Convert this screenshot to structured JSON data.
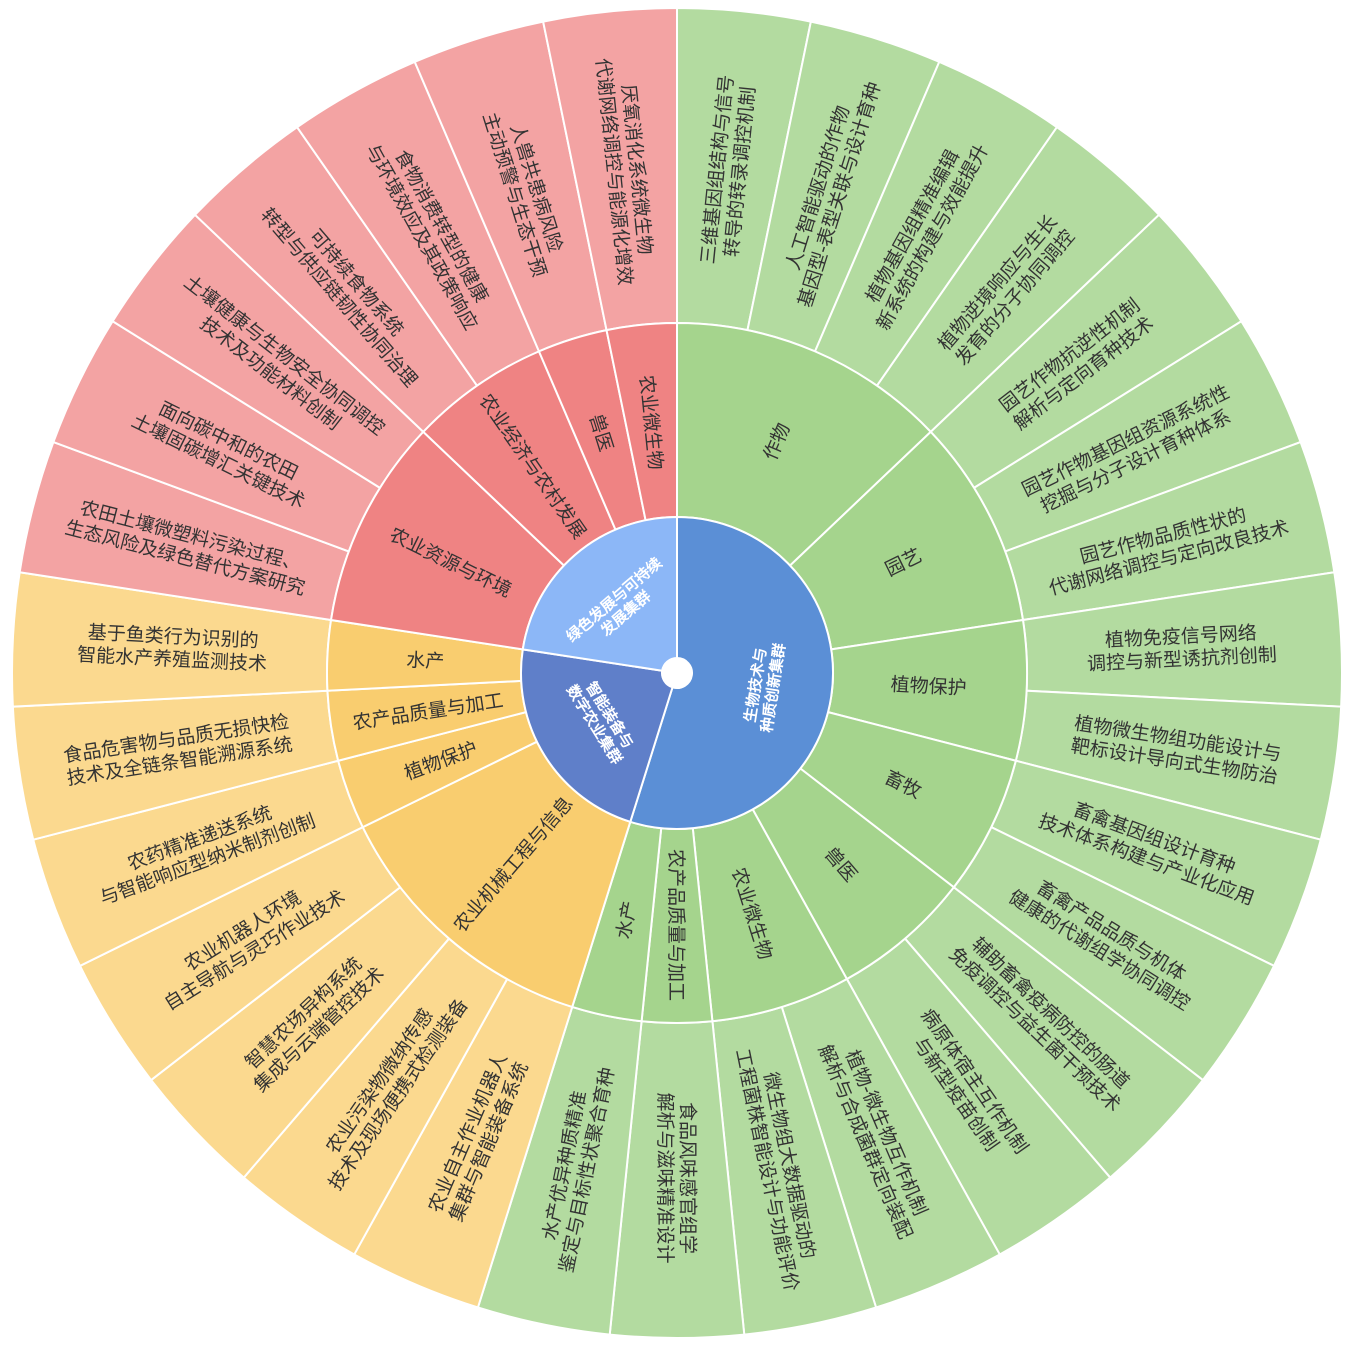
{
  "colors": {
    "biotech": {
      "inner": "#5b8fd6",
      "mid": "#a5d48d",
      "outer": "#b3dba0"
    },
    "smart": {
      "inner": "#5f7fc9",
      "mid": "#f9cd6f",
      "outer": "#fbd98f"
    },
    "green": {
      "inner": "#8cb7f7",
      "mid": "#ef8383",
      "outer": "#f3a3a3"
    },
    "text": "#333333",
    "inner_text": "#ffffff",
    "separator": "#ffffff"
  },
  "clusters": [
    {
      "key": "biotech",
      "label": [
        "生物技术与",
        "种质创新集群"
      ],
      "groups": [
        {
          "label": [
            "作物"
          ],
          "items": [
            [
              "三维基因组结构与信号",
              "转导的转录调控机制"
            ],
            [
              "人工智能驱动的作物",
              "基因型-表型关联与设计育种"
            ],
            [
              "植物基因组精准编辑",
              "新系统的构建与效能提升"
            ],
            [
              "植物逆境响应与生长",
              "发育的分子协同调控"
            ]
          ]
        },
        {
          "label": [
            "园艺"
          ],
          "items": [
            [
              "园艺作物抗逆性机制",
              "解析与定向育种技术"
            ],
            [
              "园艺作物基因组资源系统性",
              "挖掘与分子设计育种体系"
            ],
            [
              "园艺作物品质性状的",
              "代谢网络调控与定向改良技术"
            ]
          ]
        },
        {
          "label": [
            "植物保护"
          ],
          "items": [
            [
              "植物免疫信号网络",
              "调控与新型诱抗剂创制"
            ],
            [
              "植物微生物组功能设计与",
              "靶标设计导向式生物防治"
            ]
          ]
        },
        {
          "label": [
            "畜牧"
          ],
          "items": [
            [
              "畜禽基因组设计育种",
              "技术体系构建与产业化应用"
            ],
            [
              "畜禽产品品质与机体",
              "健康的代谢组学协同调控"
            ]
          ]
        },
        {
          "label": [
            "兽医"
          ],
          "items": [
            [
              "辅助畜禽疫病防控的肠道",
              "免疫调控与益生菌干预技术"
            ],
            [
              "病原体宿主互作机制",
              "与新型疫苗创制"
            ]
          ]
        },
        {
          "label": [
            "农业微生物"
          ],
          "items": [
            [
              "植物-微生物互作机制",
              "解析与合成菌群定向装配"
            ],
            [
              "微生物组大数据驱动的",
              "工程菌株智能设计与功能评价"
            ]
          ]
        },
        {
          "label": [
            "农产品质量与加工"
          ],
          "items": [
            [
              "食品风味感官组学",
              "解析与滋味精准设计"
            ]
          ]
        },
        {
          "label": [
            "水产"
          ],
          "items": [
            [
              "水产优异种质精准",
              "鉴定与目标性状聚合育种"
            ]
          ]
        }
      ]
    },
    {
      "key": "smart",
      "label": [
        "智能装备与",
        "数字农业集群"
      ],
      "groups": [
        {
          "label": [
            "农业机械工程与信息"
          ],
          "items": [
            [
              "农业自主作业机器人",
              "集群与智能装备系统"
            ],
            [
              "农业污染物微纳传感",
              "技术及现场便携式检测装备"
            ],
            [
              "智慧农场异构系统",
              "集成与云端管控技术"
            ],
            [
              "农业机器人环境",
              "自主导航与灵巧作业技术"
            ]
          ]
        },
        {
          "label": [
            "植物保护"
          ],
          "items": [
            [
              "农药精准递送系统",
              "与智能响应型纳米制剂创制"
            ]
          ]
        },
        {
          "label": [
            "农产品质量与加工"
          ],
          "items": [
            [
              "食品危害物与品质无损快检",
              "技术及全链条智能溯源系统"
            ]
          ]
        },
        {
          "label": [
            "水产"
          ],
          "items": [
            [
              "基于鱼类行为识别的",
              "智能水产养殖监测技术"
            ]
          ]
        }
      ]
    },
    {
      "key": "green",
      "label": [
        "绿色发展与可持续",
        "发展集群"
      ],
      "groups": [
        {
          "label": [
            "农业资源与环境"
          ],
          "items": [
            [
              "农田土壤微塑料污染过程、",
              "生态风险及绿色替代方案研究"
            ],
            [
              "面向碳中和的农田",
              "土壤固碳增汇关键技术"
            ],
            [
              "土壤健康与生物安全协同调控",
              "技术及功能材料创制"
            ]
          ]
        },
        {
          "label": [
            "农业经济与农村发展"
          ],
          "items": [
            [
              "可持续食物系统",
              "转型与供应链韧性协同治理"
            ],
            [
              "食物消费转型的健康",
              "与环境效应及其政策响应"
            ]
          ]
        },
        {
          "label": [
            "兽医"
          ],
          "items": [
            [
              "人兽共患病风险",
              "主动预警与生态干预"
            ]
          ]
        },
        {
          "label": [
            "农业微生物"
          ],
          "items": [
            [
              "厌氧消化系统微生物",
              "代谢网络调控与能源化增效"
            ]
          ]
        }
      ]
    }
  ]
}
